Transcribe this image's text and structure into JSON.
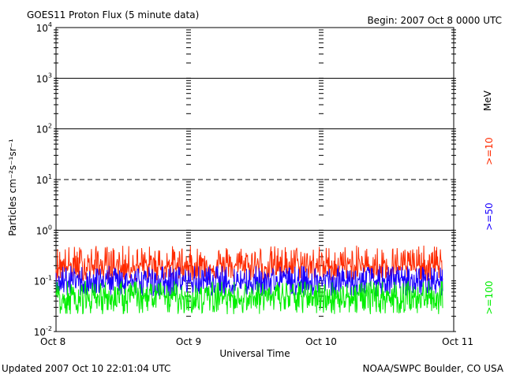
{
  "chart_data": {
    "type": "line",
    "title": "GOES11 Proton Flux (5 minute data)",
    "begin_label": "Begin: 2007 Oct 8 0000 UTC",
    "xlabel": "Universal Time",
    "ylabel": "Particles cm⁻²s⁻¹sr⁻¹",
    "y_scale": "log",
    "ylim": [
      0.01,
      10000
    ],
    "y_tick_labels": [
      {
        "value": 10000,
        "base": "10",
        "exp": "4"
      },
      {
        "value": 1000,
        "base": "10",
        "exp": "3"
      },
      {
        "value": 100,
        "base": "10",
        "exp": "2"
      },
      {
        "value": 10,
        "base": "10",
        "exp": "1"
      },
      {
        "value": 1,
        "base": "10",
        "exp": "0"
      },
      {
        "value": 0.1,
        "base": "10",
        "exp": "-1"
      },
      {
        "value": 0.01,
        "base": "10",
        "exp": "-2"
      }
    ],
    "x_ticks": [
      "Oct 8",
      "Oct 9",
      "Oct 10",
      "Oct 11"
    ],
    "xlim_days": [
      0,
      3
    ],
    "threshold_lines": [
      {
        "value": 1000,
        "style": "solid"
      },
      {
        "value": 100,
        "style": "solid"
      },
      {
        "value": 10,
        "style": "dashed"
      },
      {
        "value": 1,
        "style": "solid"
      }
    ],
    "legend_unit": "MeV",
    "series": [
      {
        "name": ">=10",
        "color": "#ff2a00",
        "baseline": 0.2,
        "max": 0.5,
        "min": 0.1
      },
      {
        "name": ">=50",
        "color": "#1a00ff",
        "baseline": 0.1,
        "max": 0.2,
        "min": 0.05
      },
      {
        "name": ">=100",
        "color": "#00ee00",
        "baseline": 0.05,
        "max": 0.1,
        "min": 0.022
      }
    ],
    "data_end_day": 2.917
  },
  "footer": {
    "updated": "Updated 2007 Oct 10 22:01:04 UTC",
    "credit": "NOAA/SWPC Boulder, CO USA"
  }
}
